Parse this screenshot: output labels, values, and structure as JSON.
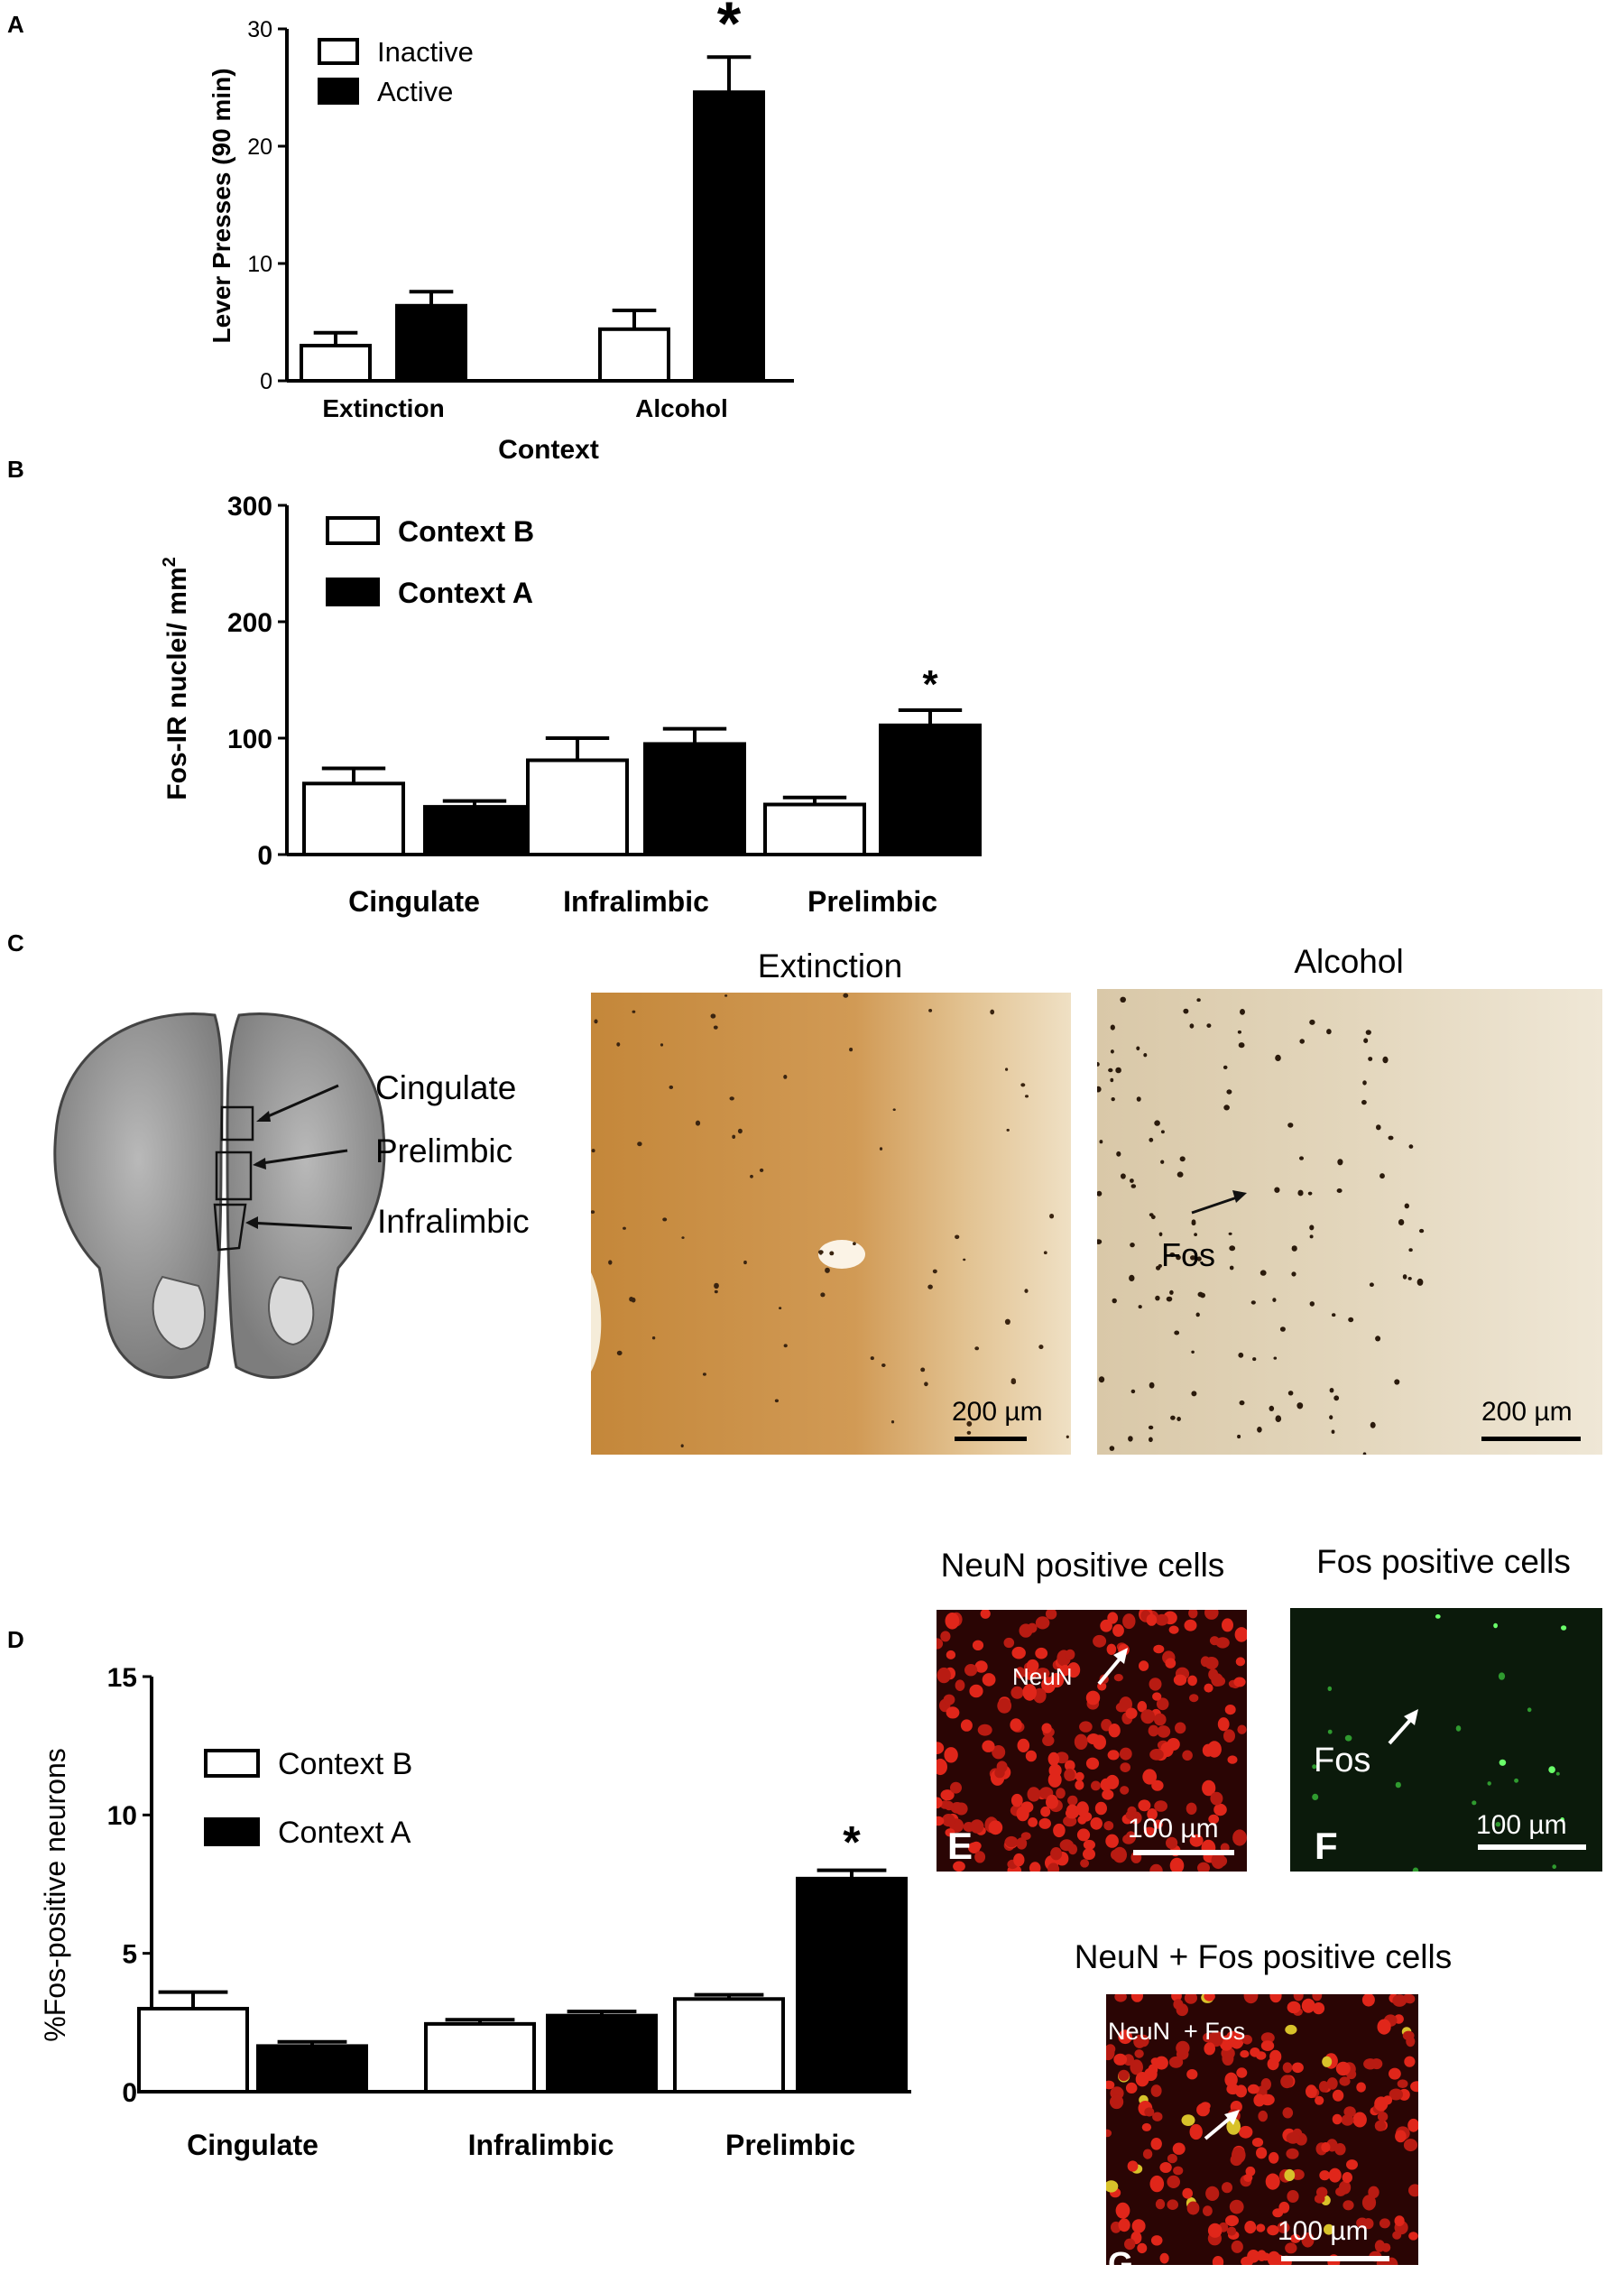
{
  "panels": {
    "A": "A",
    "B": "B",
    "C": "C",
    "D": "D"
  },
  "chart_data": [
    {
      "id": "A",
      "type": "bar",
      "ylabel": "Lever Presses (90 min)",
      "xlabel": "Context",
      "ylim": [
        0,
        30
      ],
      "yticks": [
        0,
        10,
        20,
        30
      ],
      "categories": [
        "Extinction",
        "Alcohol"
      ],
      "legend_position": "top-left",
      "series": [
        {
          "name": "Inactive",
          "fill": "#ffffff",
          "values": [
            3.0,
            4.4
          ],
          "errors": [
            1.1,
            1.6
          ]
        },
        {
          "name": "Active",
          "fill": "#000000",
          "values": [
            6.4,
            24.6
          ],
          "errors": [
            1.2,
            3.0
          ]
        }
      ],
      "annotations": [
        {
          "category": 1,
          "series": 1,
          "text": "*"
        }
      ]
    },
    {
      "id": "B",
      "type": "bar",
      "ylabel_main": "Fos-IR nuclei/ mm",
      "ylabel_sup": "2",
      "ylim": [
        0,
        300
      ],
      "yticks": [
        0,
        100,
        200,
        300
      ],
      "categories": [
        "Cingulate",
        "Infralimbic",
        "Prelimbic"
      ],
      "legend_position": "top-left",
      "series": [
        {
          "name": "Context B",
          "fill": "#ffffff",
          "values": [
            61,
            81,
            43
          ],
          "errors": [
            13,
            19,
            6
          ]
        },
        {
          "name": "Context A",
          "fill": "#000000",
          "values": [
            41,
            95,
            111
          ],
          "errors": [
            5,
            13,
            13
          ]
        }
      ],
      "annotations": [
        {
          "category": 2,
          "series": 1,
          "text": "*"
        }
      ]
    },
    {
      "id": "D",
      "type": "bar",
      "ylabel": "%Fos-positive neurons",
      "ylim": [
        0,
        15
      ],
      "yticks": [
        0,
        5,
        10,
        15
      ],
      "categories": [
        "Cingulate",
        "Infralimbic",
        "Prelimbic"
      ],
      "legend_position": "top-left",
      "series": [
        {
          "name": "Context B",
          "fill": "#ffffff",
          "values": [
            3.0,
            2.45,
            3.35
          ],
          "errors": [
            0.6,
            0.15,
            0.15
          ]
        },
        {
          "name": "Context A",
          "fill": "#000000",
          "values": [
            1.65,
            2.75,
            7.7
          ],
          "errors": [
            0.15,
            0.15,
            0.3
          ]
        }
      ],
      "annotations": [
        {
          "category": 2,
          "series": 1,
          "text": "*"
        }
      ]
    }
  ],
  "panel_c": {
    "regions": [
      "Cingulate",
      "Prelimbic",
      "Infralimbic"
    ],
    "micrographs": [
      {
        "title": "Extinction",
        "scale_bar": "200 µm"
      },
      {
        "title": "Alcohol",
        "scale_bar": "200 µm",
        "arrow_label": "Fos"
      }
    ]
  },
  "fluorescence": [
    {
      "title": "NeuN positive cells",
      "letter": "E",
      "scale_bar": "100 µm",
      "arrow_label": "NeuN",
      "color": "#d61f14"
    },
    {
      "title": "Fos positive cells",
      "letter": "F",
      "scale_bar": "100 µm",
      "arrow_label": "Fos",
      "color": "#3fd43f"
    },
    {
      "title": "NeuN + Fos positive cells",
      "letter": "G",
      "scale_bar": "100 µm",
      "arrow_label": "NeuN  + Fos",
      "color": "#d61f14"
    }
  ]
}
